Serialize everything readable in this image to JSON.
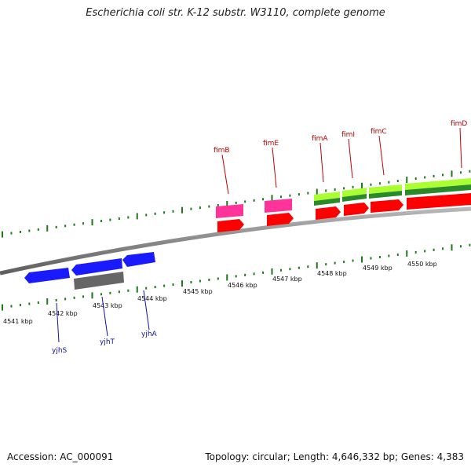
{
  "title": "Escherichia coli str. K-12 substr. W3110, complete genome",
  "footer": {
    "accession": "Accession: AC_000091",
    "stats": "Topology: circular; Length: 4,646,332 bp; Genes: 4,383"
  },
  "colors": {
    "backbone": "#808080",
    "tick": "#1a7a1a",
    "forward_gene": "#ff0000",
    "forward_gene_alt": "#ff3399",
    "forward_cds_light": "#aaff33",
    "forward_cds_dark": "#2a8a2a",
    "reverse_gene": "#1a1aff",
    "reverse_gene_gray": "#666666",
    "label_forward": "#c00000",
    "label_reverse": "#1010b0"
  },
  "scale": {
    "unit": "kbp",
    "labels": [
      "4541 kbp",
      "4542 kbp",
      "4543 kbp",
      "4544 kbp",
      "4545 kbp",
      "4546 kbp",
      "4547 kbp",
      "4548 kbp",
      "4549 kbp",
      "4550 kbp"
    ]
  },
  "genes_forward": [
    {
      "name": "fimB",
      "color_key": "forward_gene_alt"
    },
    {
      "name": "fimE",
      "color_key": "forward_gene_alt"
    },
    {
      "name": "fimA",
      "color_key": "forward_gene"
    },
    {
      "name": "fimI",
      "color_key": "forward_gene"
    },
    {
      "name": "fimC",
      "color_key": "forward_gene"
    },
    {
      "name": "fimD",
      "color_key": "forward_gene"
    }
  ],
  "genes_reverse": [
    {
      "name": "yjhS"
    },
    {
      "name": "yjhT"
    },
    {
      "name": "yjhA"
    }
  ]
}
